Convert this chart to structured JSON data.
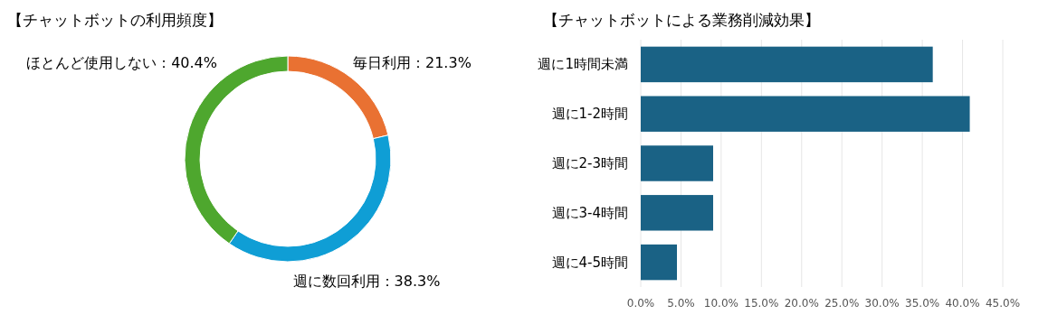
{
  "chart_data": [
    {
      "type": "donut",
      "title": "【チャットボットの利用頻度】",
      "categories": [
        "毎日利用",
        "週に数回利用",
        "ほとんど使用しない"
      ],
      "values": [
        21.3,
        38.3,
        40.4
      ],
      "colors": [
        "#e97132",
        "#0f9ed5",
        "#4ea72e"
      ],
      "value_labels": [
        "21.3%",
        "38.3%",
        "40.4%"
      ]
    },
    {
      "type": "bar",
      "orientation": "horizontal",
      "title": "【チャットボットによる業務削減効果】",
      "categories": [
        "週に1時間未満",
        "週に1-2時間",
        "週に2-3時間",
        "週に3-4時間",
        "週に4-5時間"
      ],
      "values": [
        36.3,
        40.9,
        9.0,
        9.0,
        4.5
      ],
      "color": "#1a6285",
      "xlim": [
        0,
        45
      ],
      "xticks": [
        {
          "value": 0,
          "label": "0.0%"
        },
        {
          "value": 5,
          "label": "5.0%"
        },
        {
          "value": 10,
          "label": "10.0%"
        },
        {
          "value": 15,
          "label": "15.0%"
        },
        {
          "value": 20,
          "label": "20.0%"
        },
        {
          "value": 25,
          "label": "25.0%"
        },
        {
          "value": 30,
          "label": "30.0%"
        },
        {
          "value": 35,
          "label": "35.0%"
        },
        {
          "value": 40,
          "label": "40.0%"
        },
        {
          "value": 45,
          "label": "45.0%"
        }
      ],
      "grid": "x"
    }
  ]
}
